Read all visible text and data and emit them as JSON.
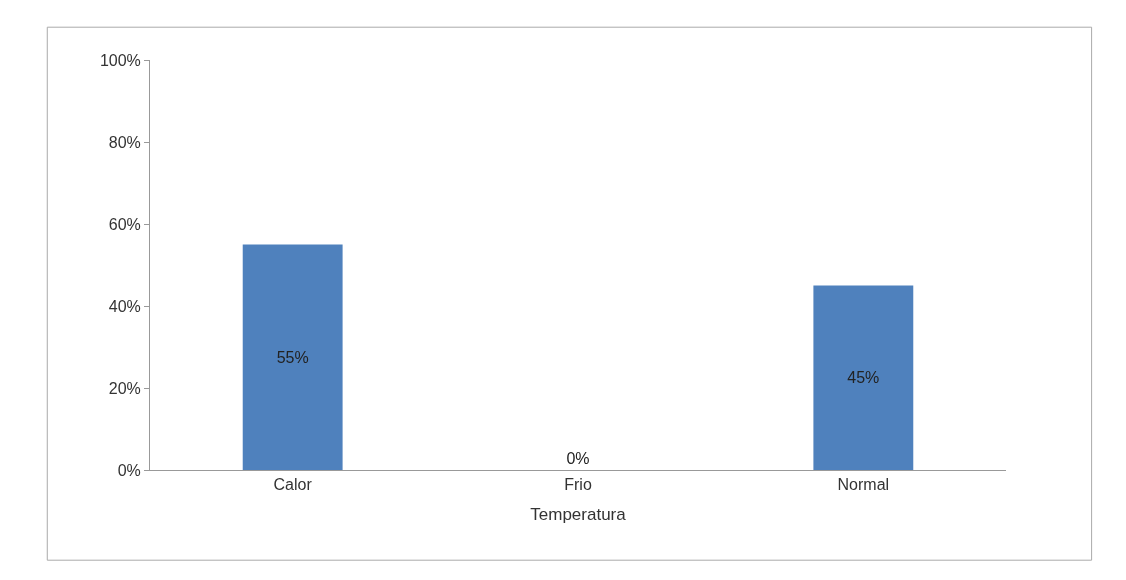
{
  "chart_data": {
    "type": "bar",
    "xlabel": "Temperatura",
    "categories": [
      "Calor",
      "Frio",
      "Normal"
    ],
    "values": [
      55,
      0,
      45
    ],
    "color": "#4f81bd",
    "value_labels": [
      "55%",
      "0%",
      "45%"
    ],
    "ylim": [
      0,
      100
    ],
    "yticks": [
      {
        "value": 0,
        "label": "0%"
      },
      {
        "value": 20,
        "label": "20%"
      },
      {
        "value": 40,
        "label": "40%"
      },
      {
        "value": 60,
        "label": "60%"
      },
      {
        "value": 80,
        "label": "80%"
      },
      {
        "value": 100,
        "label": "100%"
      }
    ]
  }
}
